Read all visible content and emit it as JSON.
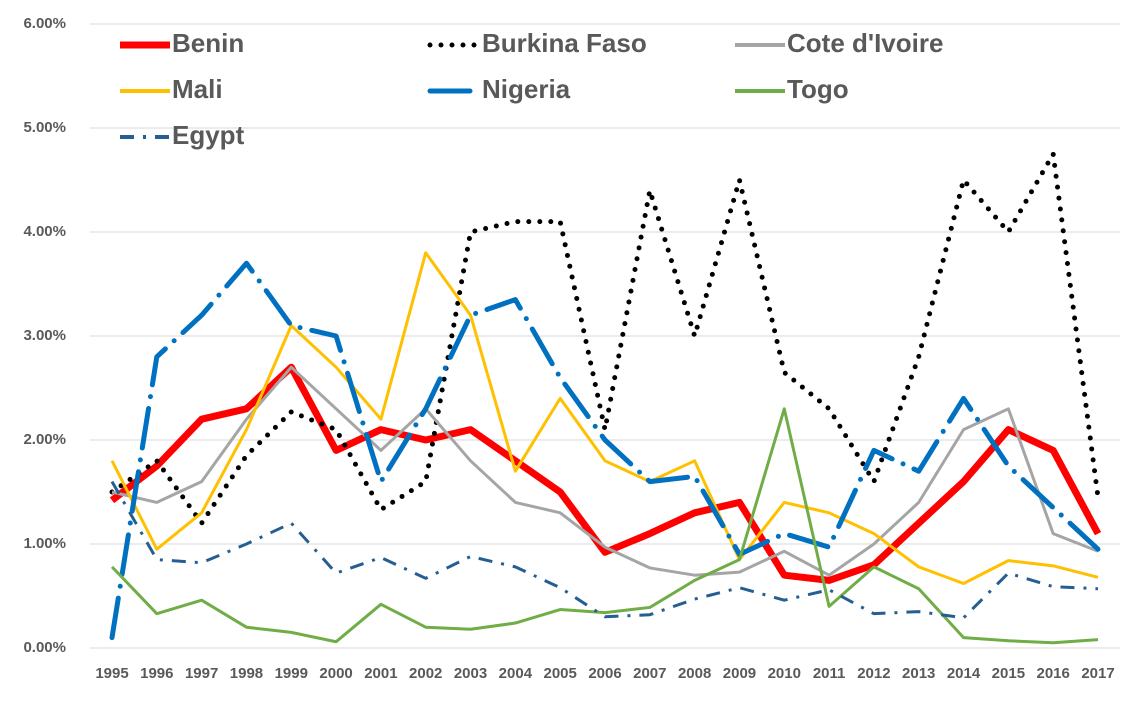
{
  "chart_data": {
    "type": "line",
    "categories": [
      "1995",
      "1996",
      "1997",
      "1998",
      "1999",
      "2000",
      "2001",
      "2002",
      "2003",
      "2004",
      "2005",
      "2006",
      "2007",
      "2008",
      "2009",
      "2010",
      "2011",
      "2012",
      "2013",
      "2014",
      "2015",
      "2016",
      "2017"
    ],
    "series": [
      {
        "name": "Benin",
        "color": "#ff0000",
        "line_style": "thick",
        "values": [
          1.42,
          1.75,
          2.2,
          2.3,
          2.7,
          1.9,
          2.1,
          2.0,
          2.1,
          1.8,
          1.5,
          0.92,
          1.1,
          1.3,
          1.4,
          0.7,
          0.65,
          0.8,
          1.2,
          1.6,
          2.1,
          1.9,
          1.1
        ]
      },
      {
        "name": "Burkina Faso",
        "color": "#000000",
        "line_style": "dotted",
        "values": [
          1.5,
          1.8,
          1.2,
          1.85,
          2.27,
          2.1,
          1.33,
          1.6,
          4.0,
          4.1,
          4.1,
          2.1,
          4.4,
          3.0,
          4.5,
          2.65,
          2.3,
          1.6,
          2.8,
          4.5,
          4.0,
          4.75,
          1.45
        ]
      },
      {
        "name": "Cote d'Ivoire",
        "color": "#a5a5a5",
        "line_style": "solid",
        "values": [
          1.5,
          1.4,
          1.6,
          2.2,
          2.7,
          2.3,
          1.9,
          2.3,
          1.8,
          1.4,
          1.3,
          0.97,
          0.77,
          0.7,
          0.73,
          0.93,
          0.7,
          1.0,
          1.4,
          2.1,
          2.3,
          1.1,
          0.93
        ]
      },
      {
        "name": "Mali",
        "color": "#ffc000",
        "line_style": "solid",
        "values": [
          1.8,
          0.95,
          1.3,
          2.1,
          3.1,
          2.7,
          2.2,
          3.8,
          3.2,
          1.7,
          2.4,
          1.8,
          1.6,
          1.8,
          0.85,
          1.4,
          1.3,
          1.1,
          0.78,
          0.62,
          0.84,
          0.79,
          0.68
        ]
      },
      {
        "name": "Nigeria",
        "color": "#0070c0",
        "line_style": "long-dash-dot",
        "values": [
          0.1,
          2.8,
          3.2,
          3.7,
          3.1,
          3.0,
          1.6,
          2.3,
          3.2,
          3.35,
          2.6,
          2.0,
          1.6,
          1.65,
          0.9,
          1.1,
          0.97,
          1.9,
          1.7,
          2.4,
          1.75,
          1.35,
          0.95
        ]
      },
      {
        "name": "Togo",
        "color": "#70ad47",
        "line_style": "solid",
        "values": [
          0.78,
          0.33,
          0.46,
          0.2,
          0.15,
          0.06,
          0.42,
          0.2,
          0.18,
          0.24,
          0.37,
          0.34,
          0.39,
          0.65,
          0.85,
          2.3,
          0.4,
          0.78,
          0.57,
          0.1,
          0.07,
          0.05,
          0.08
        ]
      },
      {
        "name": "Egypt",
        "color": "#255e91",
        "line_style": "dash-dot",
        "values": [
          1.6,
          0.85,
          0.82,
          1.0,
          1.2,
          0.72,
          0.87,
          0.67,
          0.88,
          0.78,
          0.58,
          0.3,
          0.32,
          0.47,
          0.58,
          0.46,
          0.56,
          0.33,
          0.35,
          0.29,
          0.72,
          0.59,
          0.57
        ]
      }
    ],
    "ylim": [
      0,
      6
    ],
    "yticks": [
      {
        "value": 0,
        "label": "0.00%"
      },
      {
        "value": 1,
        "label": "1.00%"
      },
      {
        "value": 2,
        "label": "2.00%"
      },
      {
        "value": 3,
        "label": "3.00%"
      },
      {
        "value": 4,
        "label": "4.00%"
      },
      {
        "value": 5,
        "label": "5.00%"
      },
      {
        "value": 6,
        "label": "6.00%"
      }
    ],
    "grid": true,
    "legend": "top-left"
  }
}
